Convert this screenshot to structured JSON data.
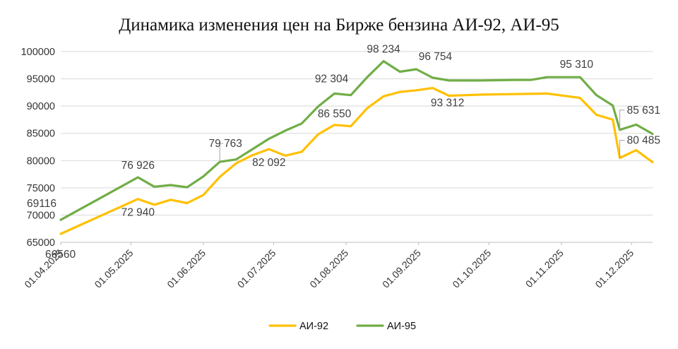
{
  "chart_data": {
    "type": "line",
    "title": "Динамика изменения цен на Бирже бензина АИ-92, АИ-95",
    "xlabel": "",
    "ylabel": "",
    "ylim": [
      65000,
      100000
    ],
    "y_ticks": [
      "100000",
      "95000",
      "90000",
      "85000",
      "80000",
      "75000",
      "70000",
      "65000"
    ],
    "x_range": [
      "2025-04-01",
      "2025-12-10"
    ],
    "x_ticks": [
      {
        "date": "2025-04-01",
        "label": "01.04.2025"
      },
      {
        "date": "2025-05-01",
        "label": "01.05.2025"
      },
      {
        "date": "2025-06-01",
        "label": "01.06.2025"
      },
      {
        "date": "2025-07-01",
        "label": "01.07.2025"
      },
      {
        "date": "2025-08-01",
        "label": "01.08.2025"
      },
      {
        "date": "2025-09-01",
        "label": "01.09.2025"
      },
      {
        "date": "2025-10-01",
        "label": "01.10.2025"
      },
      {
        "date": "2025-11-01",
        "label": "01.11.2025"
      },
      {
        "date": "2025-12-01",
        "label": "01.12.2025"
      }
    ],
    "grid": "horizontal",
    "legend_position": "bottom",
    "series": [
      {
        "name": "АИ-92",
        "color": "#FFC000",
        "points": [
          {
            "x": "2025-04-01",
            "y": 66560
          },
          {
            "x": "2025-05-04",
            "y": 72940
          },
          {
            "x": "2025-05-11",
            "y": 71900
          },
          {
            "x": "2025-05-18",
            "y": 72800
          },
          {
            "x": "2025-05-25",
            "y": 72200
          },
          {
            "x": "2025-06-01",
            "y": 73700
          },
          {
            "x": "2025-06-08",
            "y": 77000
          },
          {
            "x": "2025-06-15",
            "y": 79500
          },
          {
            "x": "2025-06-22",
            "y": 81000
          },
          {
            "x": "2025-06-29",
            "y": 82092
          },
          {
            "x": "2025-07-06",
            "y": 80900
          },
          {
            "x": "2025-07-13",
            "y": 81600
          },
          {
            "x": "2025-07-20",
            "y": 84800
          },
          {
            "x": "2025-07-27",
            "y": 86550
          },
          {
            "x": "2025-08-03",
            "y": 86300
          },
          {
            "x": "2025-08-10",
            "y": 89600
          },
          {
            "x": "2025-08-17",
            "y": 91800
          },
          {
            "x": "2025-08-24",
            "y": 92600
          },
          {
            "x": "2025-08-31",
            "y": 92900
          },
          {
            "x": "2025-09-07",
            "y": 93312
          },
          {
            "x": "2025-09-14",
            "y": 91900
          },
          {
            "x": "2025-09-21",
            "y": 92000
          },
          {
            "x": "2025-09-28",
            "y": 92100
          },
          {
            "x": "2025-10-12",
            "y": 92200
          },
          {
            "x": "2025-10-26",
            "y": 92300
          },
          {
            "x": "2025-11-09",
            "y": 91500
          },
          {
            "x": "2025-11-16",
            "y": 88400
          },
          {
            "x": "2025-11-23",
            "y": 87500
          },
          {
            "x": "2025-11-26",
            "y": 80485
          },
          {
            "x": "2025-12-03",
            "y": 81900
          },
          {
            "x": "2025-12-10",
            "y": 79700
          }
        ]
      },
      {
        "name": "АИ-95",
        "color": "#70AD47",
        "points": [
          {
            "x": "2025-04-01",
            "y": 69116
          },
          {
            "x": "2025-05-04",
            "y": 76926
          },
          {
            "x": "2025-05-11",
            "y": 75200
          },
          {
            "x": "2025-05-18",
            "y": 75500
          },
          {
            "x": "2025-05-25",
            "y": 75100
          },
          {
            "x": "2025-06-01",
            "y": 77100
          },
          {
            "x": "2025-06-08",
            "y": 79763
          },
          {
            "x": "2025-06-15",
            "y": 80200
          },
          {
            "x": "2025-06-22",
            "y": 82100
          },
          {
            "x": "2025-06-29",
            "y": 84000
          },
          {
            "x": "2025-07-06",
            "y": 85500
          },
          {
            "x": "2025-07-13",
            "y": 86800
          },
          {
            "x": "2025-07-20",
            "y": 89900
          },
          {
            "x": "2025-07-27",
            "y": 92304
          },
          {
            "x": "2025-08-03",
            "y": 92000
          },
          {
            "x": "2025-08-10",
            "y": 95300
          },
          {
            "x": "2025-08-17",
            "y": 98234
          },
          {
            "x": "2025-08-24",
            "y": 96300
          },
          {
            "x": "2025-08-31",
            "y": 96754
          },
          {
            "x": "2025-09-07",
            "y": 95200
          },
          {
            "x": "2025-09-14",
            "y": 94700
          },
          {
            "x": "2025-09-28",
            "y": 94700
          },
          {
            "x": "2025-10-12",
            "y": 94800
          },
          {
            "x": "2025-10-19",
            "y": 94800
          },
          {
            "x": "2025-10-26",
            "y": 95310
          },
          {
            "x": "2025-11-09",
            "y": 95310
          },
          {
            "x": "2025-11-16",
            "y": 92000
          },
          {
            "x": "2025-11-23",
            "y": 90100
          },
          {
            "x": "2025-11-26",
            "y": 85631
          },
          {
            "x": "2025-12-03",
            "y": 86600
          },
          {
            "x": "2025-12-10",
            "y": 84900
          }
        ]
      }
    ],
    "annotations": [
      {
        "text": "69116",
        "series": 1,
        "point": 0
      },
      {
        "text": "66560",
        "series": 0,
        "point": 0
      },
      {
        "text": "76 926",
        "series": 1,
        "point": 1
      },
      {
        "text": "72 940",
        "series": 0,
        "point": 1
      },
      {
        "text": "79 763",
        "series": 1,
        "point": 6
      },
      {
        "text": "82 092",
        "series": 0,
        "point": 9
      },
      {
        "text": "92 304",
        "series": 1,
        "point": 13
      },
      {
        "text": "86 550",
        "series": 0,
        "point": 13
      },
      {
        "text": "98 234",
        "series": 1,
        "point": 16
      },
      {
        "text": "96 754",
        "series": 1,
        "point": 18
      },
      {
        "text": "93 312",
        "series": 0,
        "point": 19
      },
      {
        "text": "95 310",
        "series": 1,
        "point": 25
      },
      {
        "text": "85 631",
        "series": 1,
        "point": 28
      },
      {
        "text": "80 485",
        "series": 0,
        "point": 28
      }
    ]
  }
}
